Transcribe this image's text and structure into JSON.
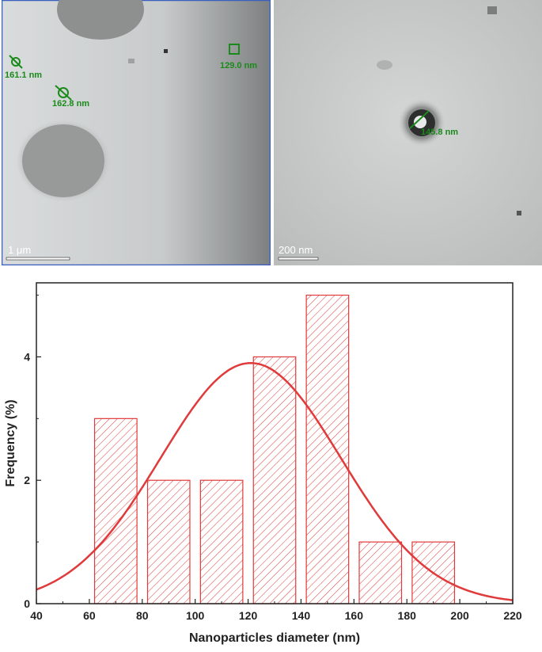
{
  "tem_images": [
    {
      "scale_bar": "1 μm",
      "measurements": [
        "161.1 nm",
        "162.8 nm",
        "129.0 nm"
      ],
      "border_color": "#3a5fbf"
    },
    {
      "scale_bar": "200 nm",
      "measurements": [
        "145.8 nm"
      ]
    }
  ],
  "chart_data": {
    "type": "bar",
    "title": "",
    "xlabel": "Nanoparticles diameter (nm)",
    "ylabel": "Frequency (%)",
    "xlim": [
      40,
      220
    ],
    "ylim": [
      0,
      5.2
    ],
    "xticks": [
      40,
      60,
      80,
      100,
      120,
      140,
      160,
      180,
      200,
      220
    ],
    "yticks": [
      0,
      2,
      4
    ],
    "bin_edges": [
      [
        62,
        78
      ],
      [
        82,
        98
      ],
      [
        102,
        118
      ],
      [
        122,
        138
      ],
      [
        142,
        158
      ],
      [
        162,
        178
      ],
      [
        182,
        198
      ]
    ],
    "values": [
      3,
      2,
      2,
      4,
      5,
      1,
      1
    ],
    "fit": {
      "type": "gaussian",
      "center": 121,
      "sigma": 34,
      "amplitude": 3.9
    },
    "bar_color": "#e03a3a",
    "hatch": "diagonal",
    "fit_color": "#e03a3a",
    "grid": false
  }
}
